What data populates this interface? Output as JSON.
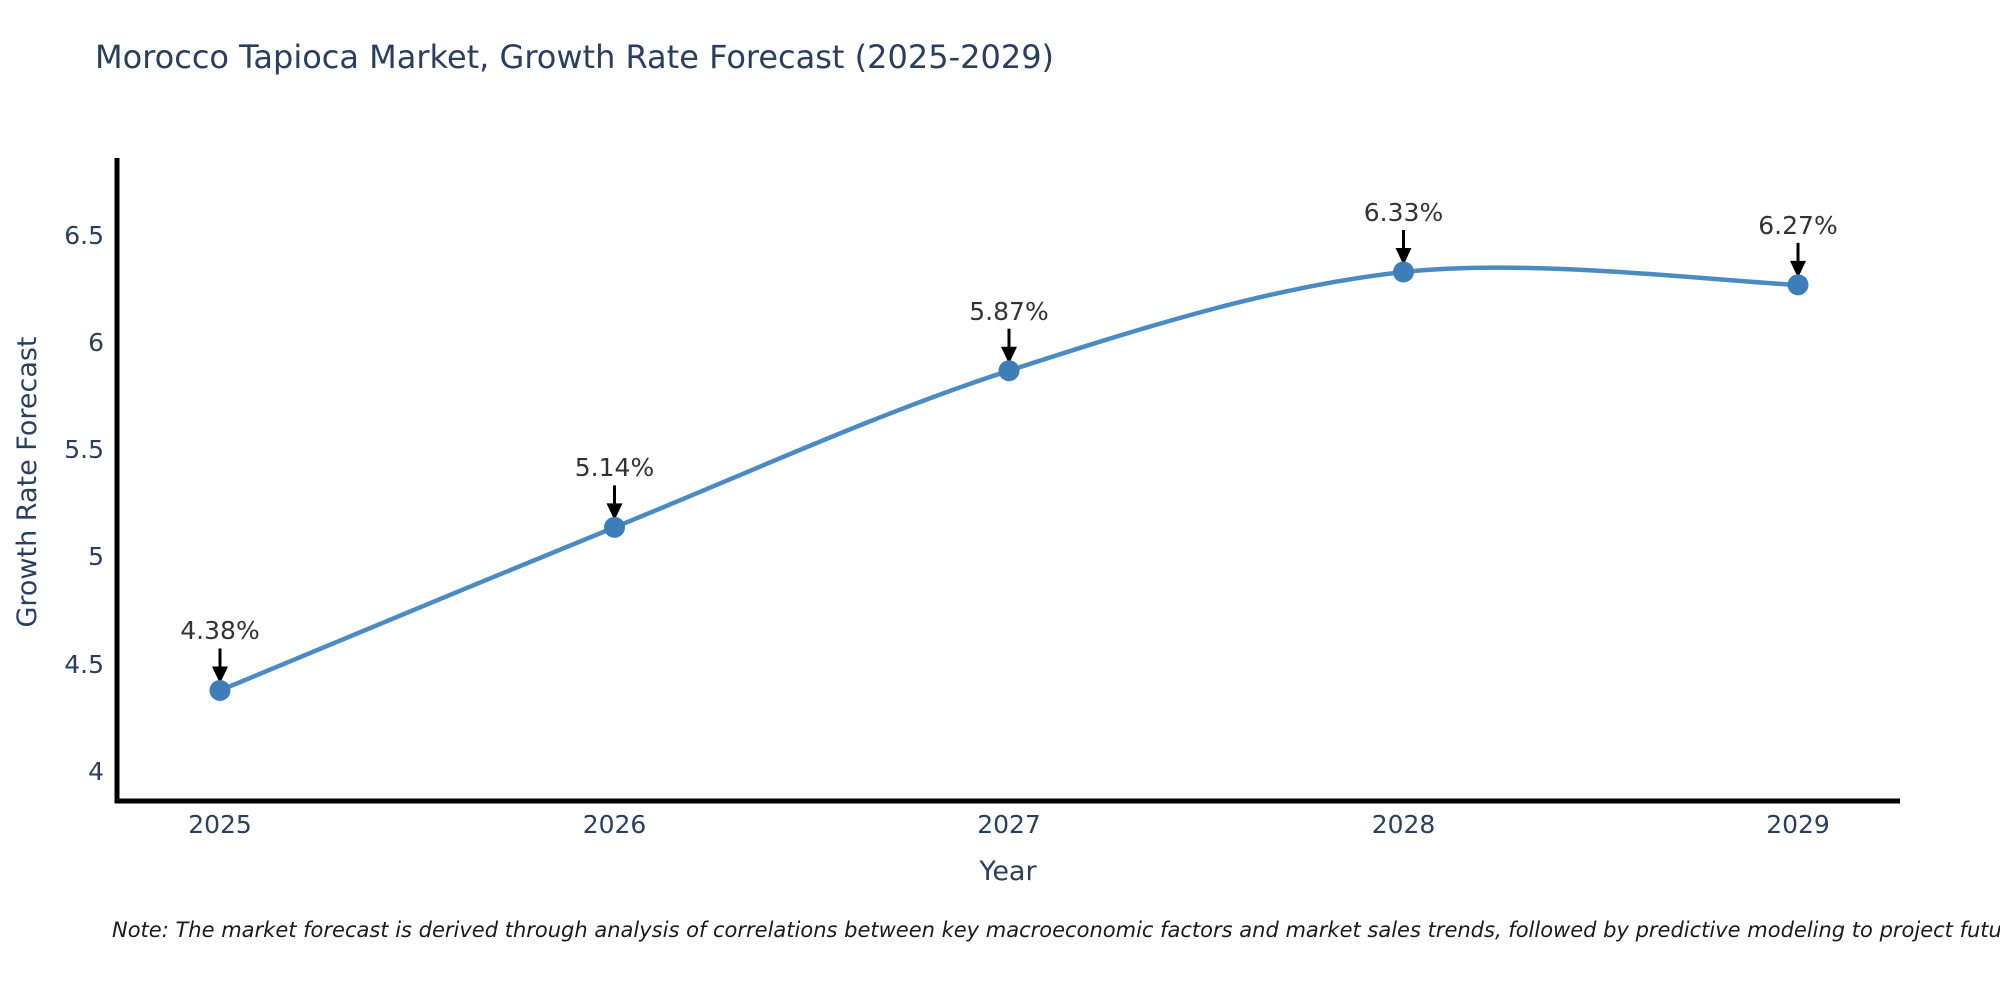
{
  "note": "Note: The market forecast is derived through analysis of correlations between key macroeconomic factors and market sales trends, followed by predictive modeling to project future sales",
  "colors": {
    "line": "#4a8bc4",
    "marker": "#3e7eb8",
    "axis": "#000000",
    "title_text": "#2a3f5f",
    "tick_text": "#2a3f5f",
    "annotation_text": "#333333",
    "arrow": "#000000",
    "background": "#ffffff"
  },
  "chart_data": {
    "type": "line",
    "title": "Morocco Tapioca Market, Growth Rate Forecast (2025-2029)",
    "xlabel": "Year",
    "ylabel": "Growth Rate Forecast",
    "categories": [
      "2025",
      "2026",
      "2027",
      "2028",
      "2029"
    ],
    "x": [
      2025,
      2026,
      2027,
      2028,
      2029
    ],
    "values": [
      4.38,
      5.14,
      5.87,
      6.33,
      6.27
    ],
    "point_labels": [
      "4.38%",
      "5.14%",
      "5.87%",
      "6.33%",
      "6.27%"
    ],
    "ytick_values": [
      4,
      4.5,
      5,
      5.5,
      6,
      6.5
    ],
    "ytick_labels": [
      "4",
      "4.5",
      "5",
      "5.5",
      "6",
      "6.5"
    ],
    "ylim": [
      3.85,
      6.9
    ],
    "grid": false,
    "legend": "none",
    "line_shape": "spline",
    "markers": true,
    "annotations_arrows": true
  }
}
